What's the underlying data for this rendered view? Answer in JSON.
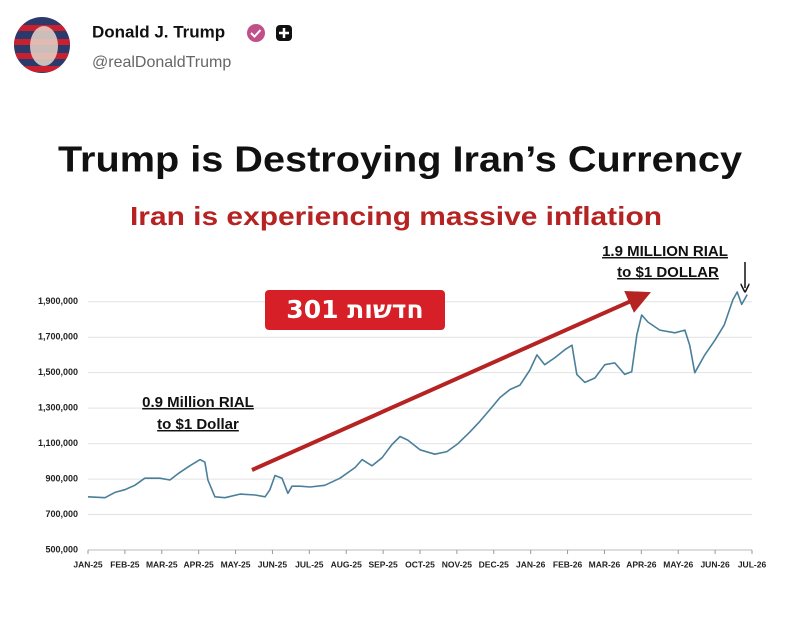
{
  "post": {
    "author": "Donald J. Trump",
    "handle": "@realDonaldTrump"
  },
  "chart_data": {
    "type": "line",
    "title": "Trump is Destroying Iran’s Currency",
    "subtitle": "Iran is experiencing massive inflation",
    "badge": "301 חדשות",
    "annotations": [
      "0.9 Million RIAL",
      "to $1 Dollar",
      "1.9 MILLION RIAL",
      "to $1 DOLLAR"
    ],
    "xlim": [
      0,
      18
    ],
    "xticks": [
      {
        "value": 0,
        "label": "JAN-25"
      },
      {
        "value": 1,
        "label": "FEB-25"
      },
      {
        "value": 2,
        "label": "MAR-25"
      },
      {
        "value": 3,
        "label": "APR-25"
      },
      {
        "value": 4,
        "label": "MAY-25"
      },
      {
        "value": 5,
        "label": "JUN-25"
      },
      {
        "value": 6,
        "label": "JUL-25"
      },
      {
        "value": 7,
        "label": "AUG-25"
      },
      {
        "value": 8,
        "label": "SEP-25"
      },
      {
        "value": 9,
        "label": "OCT-25"
      },
      {
        "value": 10,
        "label": "NOV-25"
      },
      {
        "value": 11,
        "label": "DEC-25"
      },
      {
        "value": 12,
        "label": "JAN-26"
      },
      {
        "value": 13,
        "label": "FEB-26"
      },
      {
        "value": 14,
        "label": "MAR-26"
      },
      {
        "value": 15,
        "label": "APR-26"
      },
      {
        "value": 16,
        "label": "MAY-26"
      },
      {
        "value": 17,
        "label": "JUN-26"
      },
      {
        "value": 18,
        "label": "JUL-26"
      }
    ],
    "ylim": [
      500000,
      2000000
    ],
    "yticks": [
      {
        "value": 500000,
        "label": "500,000"
      },
      {
        "value": 700000,
        "label": "700,000"
      },
      {
        "value": 900000,
        "label": "900,000"
      },
      {
        "value": 1100000,
        "label": "1,100,000"
      },
      {
        "value": 1300000,
        "label": "1,300,000"
      },
      {
        "value": 1500000,
        "label": "1,500,000"
      },
      {
        "value": 1700000,
        "label": "1,700,000"
      },
      {
        "value": 1900000,
        "label": "1,900,000"
      }
    ],
    "grid": true,
    "x": [
      0,
      0.46,
      0.73,
      1.0,
      1.27,
      1.54,
      1.95,
      2.22,
      2.44,
      2.76,
      3.04,
      3.17,
      3.25,
      3.44,
      3.71,
      4.12,
      4.53,
      4.8,
      4.93,
      5.07,
      5.26,
      5.42,
      5.53,
      5.75,
      6.02,
      6.42,
      6.83,
      7.24,
      7.43,
      7.7,
      7.97,
      8.24,
      8.46,
      8.67,
      9.0,
      9.4,
      9.73,
      10.03,
      10.35,
      10.62,
      10.89,
      11.17,
      11.44,
      11.71,
      11.98,
      12.17,
      12.38,
      12.66,
      12.93,
      13.12,
      13.25,
      13.47,
      13.74,
      14.01,
      14.28,
      14.55,
      14.74,
      14.88,
      15.01,
      15.18,
      15.5,
      15.91,
      16.18,
      16.31,
      16.45,
      16.72,
      17.0,
      17.25,
      17.48,
      17.6,
      17.72,
      17.87
    ],
    "series": [
      {
        "color": "#4a7f9a",
        "values": [
          800000,
          795000,
          825000,
          840000,
          865000,
          905000,
          905000,
          895000,
          930000,
          975000,
          1010000,
          995000,
          895000,
          800000,
          795000,
          815000,
          810000,
          800000,
          840000,
          920000,
          905000,
          820000,
          860000,
          860000,
          855000,
          865000,
          905000,
          965000,
          1010000,
          975000,
          1020000,
          1095000,
          1140000,
          1120000,
          1065000,
          1040000,
          1055000,
          1100000,
          1165000,
          1225000,
          1290000,
          1360000,
          1405000,
          1430000,
          1515000,
          1600000,
          1545000,
          1585000,
          1630000,
          1655000,
          1490000,
          1445000,
          1470000,
          1545000,
          1555000,
          1490000,
          1505000,
          1715000,
          1825000,
          1785000,
          1740000,
          1725000,
          1740000,
          1655000,
          1500000,
          1600000,
          1685000,
          1770000,
          1910000,
          1955000,
          1885000,
          1940000
        ]
      }
    ]
  }
}
